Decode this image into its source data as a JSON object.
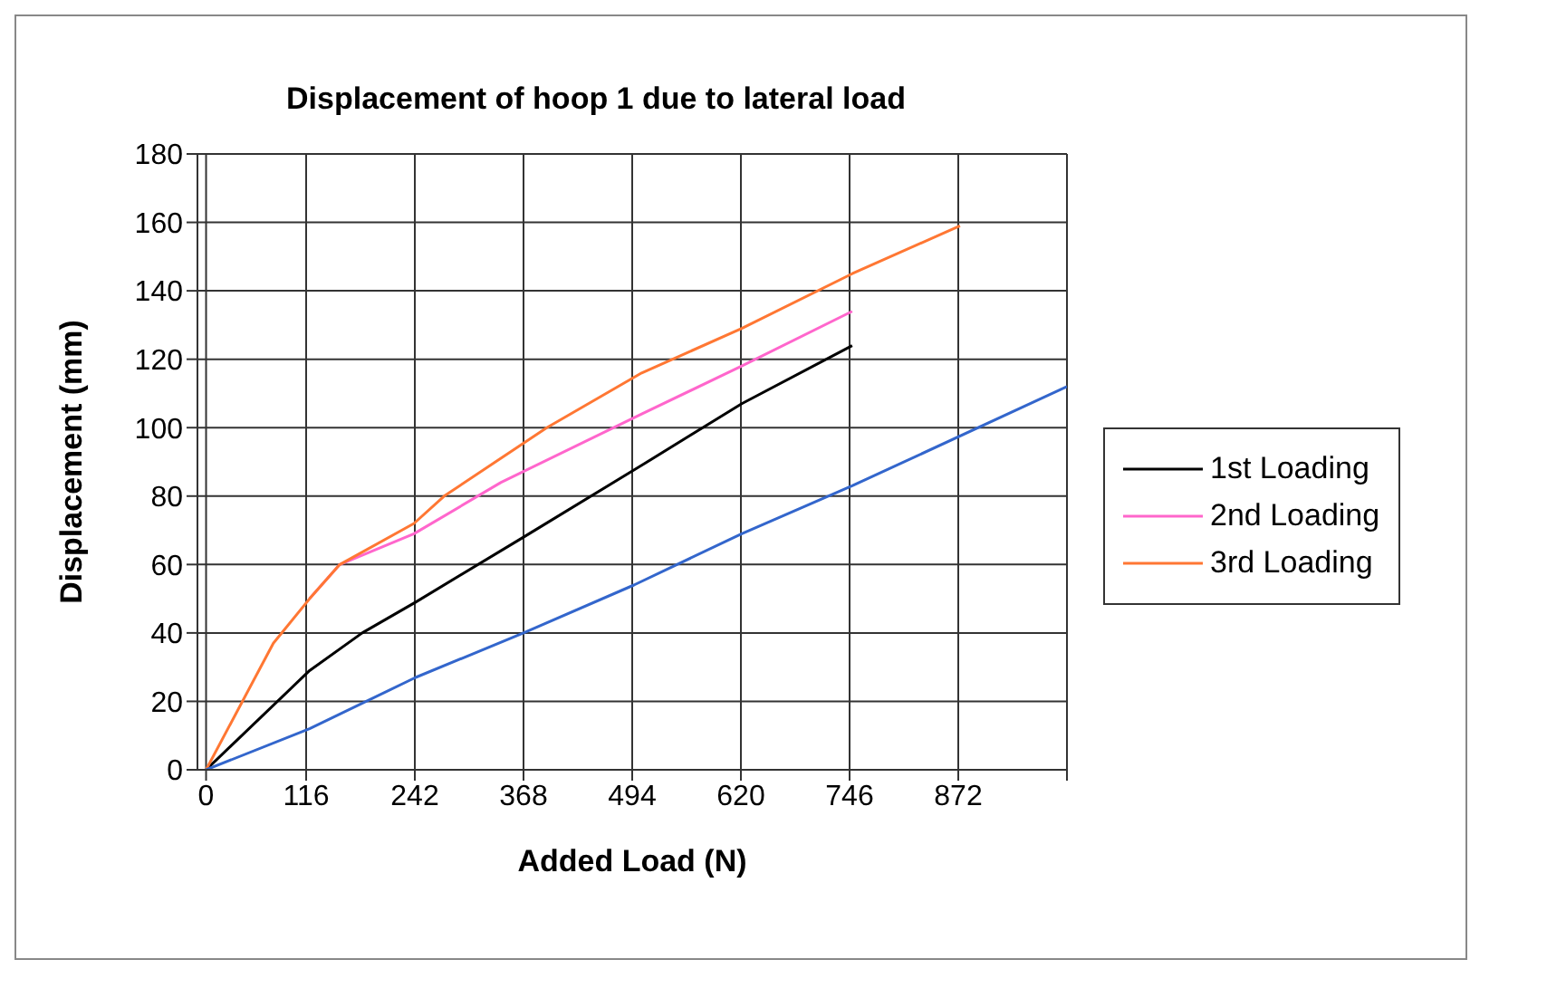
{
  "chart_data": {
    "type": "line",
    "title": "Displacement of hoop 1 due to lateral load",
    "xlabel": "Added Load (N)",
    "ylabel": "Displacement (mm)",
    "xlim": [
      -10,
      998
    ],
    "xticks": [
      0,
      116,
      242,
      368,
      494,
      620,
      746,
      872,
      {
        "value": 998,
        "label": null
      }
    ],
    "ylim": [
      0,
      180
    ],
    "yticks": [
      0,
      20,
      40,
      60,
      80,
      100,
      120,
      140,
      160,
      180
    ],
    "grid": true,
    "legend": "right",
    "marker": "none",
    "line_style": "solid",
    "series": [
      {
        "name": "1st Loading",
        "color": "#000000",
        "x": [
          0,
          120,
          181,
          243,
          368,
          505,
          621,
          749
        ],
        "values": [
          0,
          29,
          40,
          49,
          68,
          89,
          107,
          124
        ]
      },
      {
        "name": "2nd Loading",
        "color": "#ff66cc",
        "x": [
          120,
          155,
          241,
          342,
          505,
          621,
          749
        ],
        "values": [
          50,
          60,
          69,
          84,
          104,
          118,
          134
        ]
      },
      {
        "name": "3rd Loading",
        "color": "#ff7733",
        "x": [
          0,
          78,
          120,
          155,
          241,
          276,
          395,
          505,
          621,
          749,
          874
        ],
        "values": [
          0,
          37,
          50,
          60,
          72,
          80,
          100,
          116,
          129,
          145,
          159
        ]
      },
      {
        "color": "#3366cc",
        "x": [
          0,
          120,
          243,
          368,
          496,
          621,
          749,
          998
        ],
        "values": [
          0,
          12,
          27,
          40,
          54,
          69,
          83,
          112
        ]
      }
    ]
  }
}
